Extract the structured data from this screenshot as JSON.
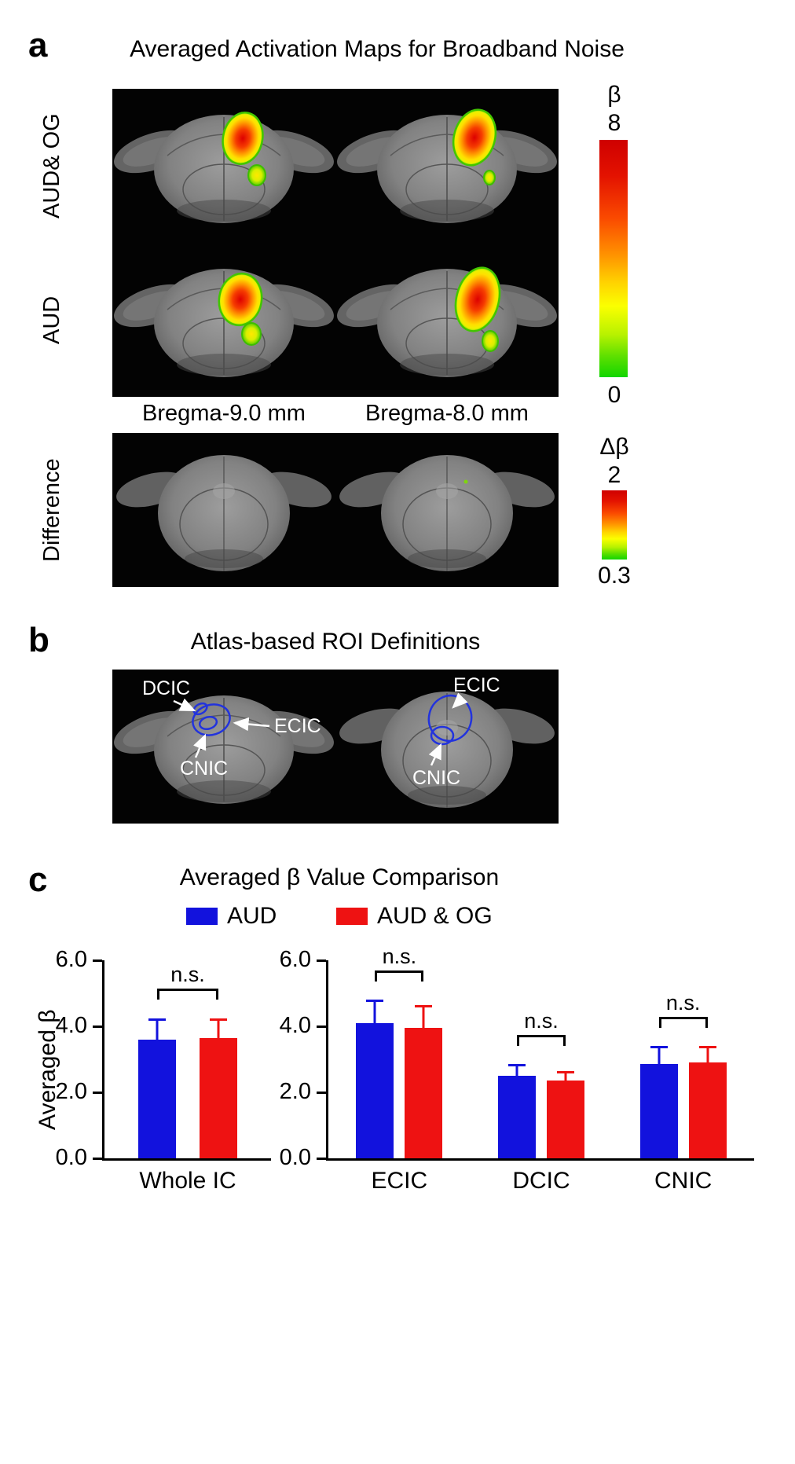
{
  "colors": {
    "series_blue": "#1212dd",
    "series_red": "#ee1212",
    "roi_blue": "#2233dd",
    "activation_max": "#dd0000",
    "activation_min": "#22cc00"
  },
  "panel_a": {
    "label": "a",
    "title": "Averaged Activation Maps for Broadband Noise",
    "row_labels": [
      "AUD& OG",
      "AUD",
      "Difference"
    ],
    "col_labels": [
      "Bregma-9.0 mm",
      "Bregma-8.0 mm"
    ],
    "beta_colorbar": {
      "title": "β",
      "max": "8",
      "min": "0"
    },
    "delta_colorbar": {
      "title": "Δβ",
      "max": "2",
      "min": "0.3"
    }
  },
  "panel_b": {
    "label": "b",
    "title": "Atlas-based ROI Definitions",
    "left_slice_labels": {
      "dcic": "DCIC",
      "ecic": "ECIC",
      "cnic": "CNIC"
    },
    "right_slice_labels": {
      "ecic": "ECIC",
      "cnic": "CNIC"
    }
  },
  "panel_c": {
    "label": "c",
    "title": "Averaged β Value Comparison",
    "legend": [
      {
        "label": "AUD",
        "color": "#1212dd"
      },
      {
        "label": "AUD & OG",
        "color": "#ee1212"
      }
    ],
    "ylabel": "Averaged β"
  },
  "chart_data": [
    {
      "type": "bar",
      "title": "",
      "categories": [
        "Whole IC"
      ],
      "series": [
        {
          "name": "AUD",
          "color": "#1212dd",
          "values": [
            3.6
          ],
          "errors": [
            0.65
          ]
        },
        {
          "name": "AUD & OG",
          "color": "#ee1212",
          "values": [
            3.65
          ],
          "errors": [
            0.6
          ]
        }
      ],
      "significance": [
        "n.s."
      ],
      "ylabel": "Averaged β",
      "ylim": [
        0,
        6
      ],
      "yticks": [
        "0.0",
        "2.0",
        "4.0",
        "6.0"
      ],
      "grid": false,
      "legend_position": "top"
    },
    {
      "type": "bar",
      "title": "",
      "categories": [
        "ECIC",
        "DCIC",
        "CNIC"
      ],
      "series": [
        {
          "name": "AUD",
          "color": "#1212dd",
          "values": [
            4.1,
            2.5,
            2.85
          ],
          "errors": [
            0.7,
            0.35,
            0.55
          ]
        },
        {
          "name": "AUD & OG",
          "color": "#ee1212",
          "values": [
            3.95,
            2.35,
            2.9
          ],
          "errors": [
            0.7,
            0.3,
            0.5
          ]
        }
      ],
      "significance": [
        "n.s.",
        "n.s.",
        "n.s."
      ],
      "ylabel": "Averaged β",
      "ylim": [
        0,
        6
      ],
      "yticks": [
        "0.0",
        "2.0",
        "4.0",
        "6.0"
      ],
      "grid": false,
      "legend_position": "top"
    }
  ]
}
